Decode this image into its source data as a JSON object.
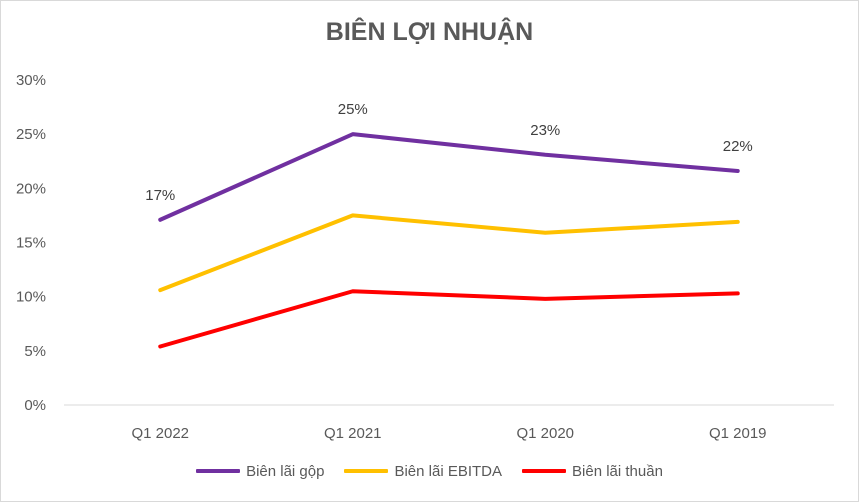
{
  "chart_data": {
    "type": "line",
    "title": "BIÊN LỢI NHUẬN",
    "categories": [
      "Q1 2022",
      "Q1 2021",
      "Q1 2020",
      "Q1 2019"
    ],
    "ylim": [
      0,
      30
    ],
    "yticks": [
      0,
      5,
      10,
      15,
      20,
      25,
      30
    ],
    "ytick_labels": [
      "0%",
      "5%",
      "10%",
      "15%",
      "20%",
      "25%",
      "30%"
    ],
    "grid": false,
    "legend_position": "bottom",
    "series": [
      {
        "name": "Biên lãi gộp",
        "color": "#7030a0",
        "values": [
          17.1,
          25.0,
          23.1,
          21.6
        ],
        "data_labels": [
          "17%",
          "25%",
          "23%",
          "22%"
        ]
      },
      {
        "name": "Biên lãi EBITDA",
        "color": "#ffc000",
        "values": [
          10.6,
          17.5,
          15.9,
          16.9
        ]
      },
      {
        "name": "Biên lãi thuần",
        "color": "#ff0000",
        "values": [
          5.4,
          10.5,
          9.8,
          10.3
        ]
      }
    ]
  }
}
